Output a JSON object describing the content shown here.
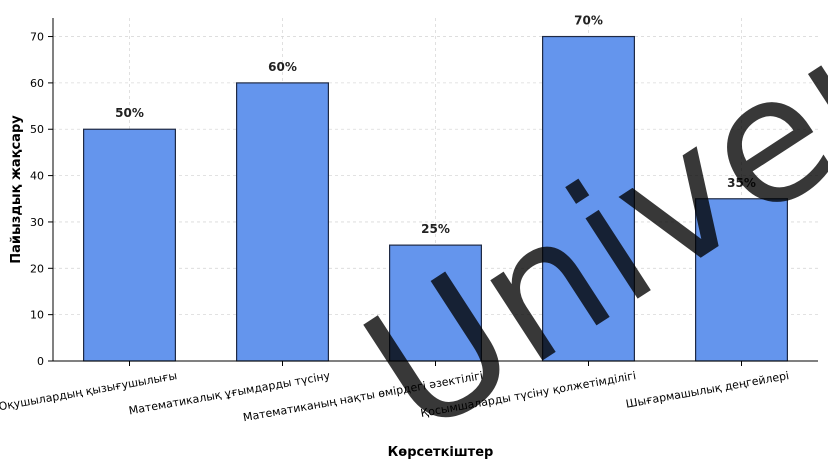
{
  "chart_data": {
    "type": "bar",
    "categories": [
      "Оқушылардың қызығушылығы",
      "Математикалық ұғымдарды түсіну",
      "Математиканың нақты өмірдегі əзектілігі",
      "Қосымшаларды түсіну қолжетімділігі",
      "Шығармашылық деңгейлері"
    ],
    "values": [
      50,
      60,
      25,
      70,
      35
    ],
    "value_labels": [
      "50%",
      "60%",
      "25%",
      "70%",
      "35%"
    ],
    "title": "",
    "xlabel": "Көрсеткіштер",
    "ylabel": "Пайыздық жақсару",
    "ylim": [
      0,
      74
    ],
    "yticks": [
      0,
      10,
      20,
      30,
      40,
      50,
      60,
      70
    ],
    "grid": true,
    "legend": "none",
    "colors": {
      "bar_fill": "#6495ED",
      "bar_edge": "#1f2a44",
      "grid": "#d9d9d9",
      "axis": "#000000",
      "text": "#000000"
    }
  },
  "watermark": {
    "text": "Univers",
    "color": "#000000"
  }
}
